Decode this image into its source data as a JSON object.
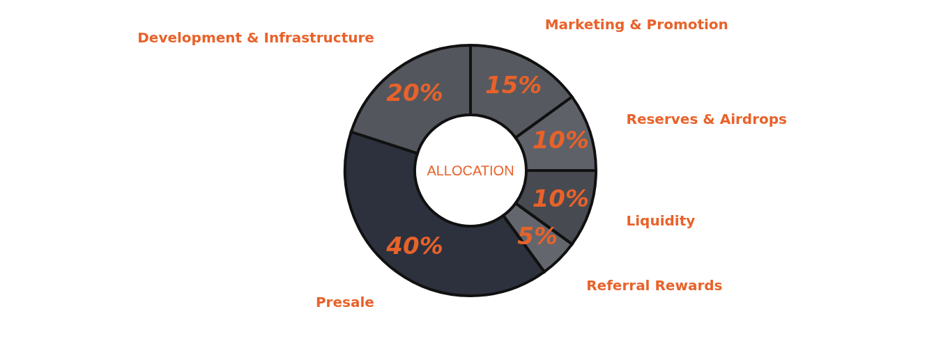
{
  "chart_data": {
    "type": "donut",
    "title": "ALLOCATION",
    "categories": [
      "Marketing & Promotion",
      "Reserves & Airdrops",
      "Liquidity",
      "Referral Rewards",
      "Presale",
      "Development & Infrastructure"
    ],
    "values": [
      15,
      10,
      10,
      5,
      40,
      20
    ],
    "value_labels": [
      "15%",
      "10%",
      "10%",
      "5%",
      "40%",
      "20%"
    ],
    "colors": [
      "#56595f",
      "#5e6168",
      "#474a51",
      "#63666c",
      "#2c313d",
      "#53565d"
    ]
  }
}
